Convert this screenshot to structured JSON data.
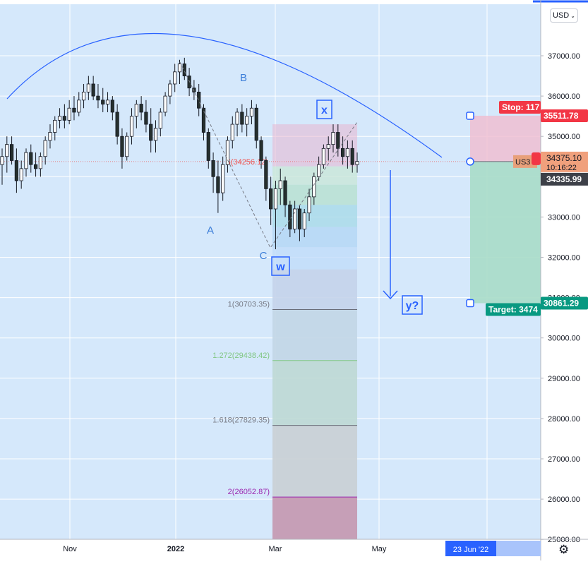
{
  "chart_data": {
    "type": "candlestick",
    "currency": "USD",
    "y_axis": {
      "ticks": [
        25000,
        26000,
        27000,
        28000,
        29000,
        30000,
        31000,
        32000,
        33000,
        34000,
        35000,
        36000,
        37000
      ],
      "tick_labels": [
        "25000.00",
        "26000.00",
        "27000.00",
        "28000.00",
        "29000.00",
        "30000.00",
        "31000.00",
        "32000.00",
        "33000.00",
        "34000.00",
        "35000.00",
        "36000.00",
        "37000.00"
      ],
      "ylim": [
        24900,
        38300
      ]
    },
    "x_axis": {
      "tick_labels": [
        "Nov",
        "2022",
        "Mar",
        "May"
      ],
      "highlighted_date": "23 Jun '22"
    },
    "price_labels": {
      "stop": {
        "text": "Stop: 117",
        "value": "35511.78"
      },
      "current": {
        "value": "34375.10",
        "countdown": "10:16:22",
        "symbol_tag": "US3"
      },
      "last": {
        "value": "34335.99"
      },
      "target": {
        "text": "Target: 3474",
        "value": "30861.29"
      }
    },
    "fibonacci": [
      {
        "label": "1(30703.35)",
        "value": 30703.35,
        "color": "#787b86"
      },
      {
        "label": "1.272(29438.42)",
        "value": 29438.42,
        "color": "#81c784"
      },
      {
        "label": "1.618(27829.35)",
        "value": 27829.35,
        "color": "#787b86"
      },
      {
        "label": "2(26052.87)",
        "value": 26052.87,
        "color": "#9c27b0"
      }
    ],
    "fib_partial_label": "6(34256.12)",
    "wave_labels": [
      "A",
      "B",
      "C"
    ],
    "boxed_labels": [
      "w",
      "x",
      "y?"
    ],
    "candles": [
      {
        "o": 34300,
        "h": 34700,
        "l": 33800,
        "c": 34500
      },
      {
        "o": 34500,
        "h": 35000,
        "l": 34100,
        "c": 34800
      },
      {
        "o": 34800,
        "h": 35000,
        "l": 34300,
        "c": 34400
      },
      {
        "o": 34400,
        "h": 34700,
        "l": 33600,
        "c": 33900
      },
      {
        "o": 33900,
        "h": 34400,
        "l": 33700,
        "c": 34200
      },
      {
        "o": 34200,
        "h": 34700,
        "l": 34000,
        "c": 34600
      },
      {
        "o": 34600,
        "h": 34800,
        "l": 34100,
        "c": 34300
      },
      {
        "o": 34300,
        "h": 34600,
        "l": 34000,
        "c": 34200
      },
      {
        "o": 34200,
        "h": 34600,
        "l": 34000,
        "c": 34500
      },
      {
        "o": 34500,
        "h": 35000,
        "l": 34300,
        "c": 34900
      },
      {
        "o": 34900,
        "h": 35300,
        "l": 34700,
        "c": 35100
      },
      {
        "o": 35100,
        "h": 35500,
        "l": 34900,
        "c": 35400
      },
      {
        "o": 35400,
        "h": 35700,
        "l": 35200,
        "c": 35500
      },
      {
        "o": 35500,
        "h": 35800,
        "l": 35200,
        "c": 35400
      },
      {
        "o": 35400,
        "h": 35900,
        "l": 35300,
        "c": 35700
      },
      {
        "o": 35700,
        "h": 36000,
        "l": 35400,
        "c": 35600
      },
      {
        "o": 35600,
        "h": 36100,
        "l": 35500,
        "c": 35900
      },
      {
        "o": 35900,
        "h": 36300,
        "l": 35700,
        "c": 36100
      },
      {
        "o": 36100,
        "h": 36500,
        "l": 35900,
        "c": 36300
      },
      {
        "o": 36300,
        "h": 36500,
        "l": 35900,
        "c": 36000
      },
      {
        "o": 36000,
        "h": 36300,
        "l": 35700,
        "c": 35900
      },
      {
        "o": 35900,
        "h": 36200,
        "l": 35600,
        "c": 35800
      },
      {
        "o": 35800,
        "h": 36100,
        "l": 35600,
        "c": 35900
      },
      {
        "o": 35900,
        "h": 36000,
        "l": 35400,
        "c": 35600
      },
      {
        "o": 35600,
        "h": 35800,
        "l": 34800,
        "c": 35000
      },
      {
        "o": 35000,
        "h": 35200,
        "l": 34200,
        "c": 34500
      },
      {
        "o": 34500,
        "h": 35100,
        "l": 34400,
        "c": 35000
      },
      {
        "o": 35000,
        "h": 35700,
        "l": 34800,
        "c": 35500
      },
      {
        "o": 35500,
        "h": 35900,
        "l": 35200,
        "c": 35800
      },
      {
        "o": 35800,
        "h": 36000,
        "l": 35400,
        "c": 35600
      },
      {
        "o": 35600,
        "h": 35900,
        "l": 35100,
        "c": 35300
      },
      {
        "o": 35300,
        "h": 35700,
        "l": 34600,
        "c": 34900
      },
      {
        "o": 34900,
        "h": 35400,
        "l": 34600,
        "c": 35200
      },
      {
        "o": 35200,
        "h": 35700,
        "l": 35000,
        "c": 35600
      },
      {
        "o": 35600,
        "h": 36100,
        "l": 35500,
        "c": 36000
      },
      {
        "o": 36000,
        "h": 36400,
        "l": 35800,
        "c": 36300
      },
      {
        "o": 36300,
        "h": 36800,
        "l": 36100,
        "c": 36600
      },
      {
        "o": 36600,
        "h": 36900,
        "l": 36300,
        "c": 36800
      },
      {
        "o": 36800,
        "h": 36950,
        "l": 36400,
        "c": 36500
      },
      {
        "o": 36500,
        "h": 36700,
        "l": 36000,
        "c": 36200
      },
      {
        "o": 36200,
        "h": 36400,
        "l": 35900,
        "c": 36100
      },
      {
        "o": 36100,
        "h": 36300,
        "l": 35500,
        "c": 35700
      },
      {
        "o": 35700,
        "h": 35800,
        "l": 34900,
        "c": 35100
      },
      {
        "o": 35100,
        "h": 35200,
        "l": 34200,
        "c": 34400
      },
      {
        "o": 34400,
        "h": 34600,
        "l": 33600,
        "c": 34000
      },
      {
        "o": 34000,
        "h": 34400,
        "l": 33100,
        "c": 33600
      },
      {
        "o": 33600,
        "h": 34500,
        "l": 33400,
        "c": 34300
      },
      {
        "o": 34300,
        "h": 35000,
        "l": 34100,
        "c": 34900
      },
      {
        "o": 34900,
        "h": 35500,
        "l": 34700,
        "c": 35300
      },
      {
        "o": 35300,
        "h": 35700,
        "l": 35000,
        "c": 35600
      },
      {
        "o": 35600,
        "h": 35800,
        "l": 35100,
        "c": 35300
      },
      {
        "o": 35300,
        "h": 35700,
        "l": 35000,
        "c": 35500
      },
      {
        "o": 35500,
        "h": 35900,
        "l": 35300,
        "c": 35700
      },
      {
        "o": 35700,
        "h": 35800,
        "l": 34700,
        "c": 34900
      },
      {
        "o": 34900,
        "h": 35000,
        "l": 34200,
        "c": 34400
      },
      {
        "o": 34400,
        "h": 34500,
        "l": 33400,
        "c": 33700
      },
      {
        "o": 33700,
        "h": 34000,
        "l": 32800,
        "c": 33200
      },
      {
        "o": 33200,
        "h": 33900,
        "l": 32200,
        "c": 33700
      },
      {
        "o": 33700,
        "h": 34200,
        "l": 33300,
        "c": 33900
      },
      {
        "o": 33900,
        "h": 34000,
        "l": 33000,
        "c": 33300
      },
      {
        "o": 33300,
        "h": 33400,
        "l": 32500,
        "c": 32700
      },
      {
        "o": 32700,
        "h": 33400,
        "l": 32600,
        "c": 33200
      },
      {
        "o": 33200,
        "h": 33300,
        "l": 32400,
        "c": 32700
      },
      {
        "o": 32700,
        "h": 33200,
        "l": 32500,
        "c": 33100
      },
      {
        "o": 33100,
        "h": 33700,
        "l": 32900,
        "c": 33500
      },
      {
        "o": 33500,
        "h": 34100,
        "l": 33300,
        "c": 34000
      },
      {
        "o": 34000,
        "h": 34500,
        "l": 33900,
        "c": 34300
      },
      {
        "o": 34300,
        "h": 34800,
        "l": 34200,
        "c": 34700
      },
      {
        "o": 34700,
        "h": 35000,
        "l": 34400,
        "c": 34800
      },
      {
        "o": 34800,
        "h": 35300,
        "l": 34600,
        "c": 35100
      },
      {
        "o": 35100,
        "h": 35300,
        "l": 34500,
        "c": 34700
      },
      {
        "o": 34700,
        "h": 35000,
        "l": 34300,
        "c": 34500
      },
      {
        "o": 34500,
        "h": 34900,
        "l": 34200,
        "c": 34700
      },
      {
        "o": 34700,
        "h": 34900,
        "l": 34100,
        "c": 34300
      },
      {
        "o": 34300,
        "h": 34600,
        "l": 34100,
        "c": 34380
      }
    ]
  }
}
